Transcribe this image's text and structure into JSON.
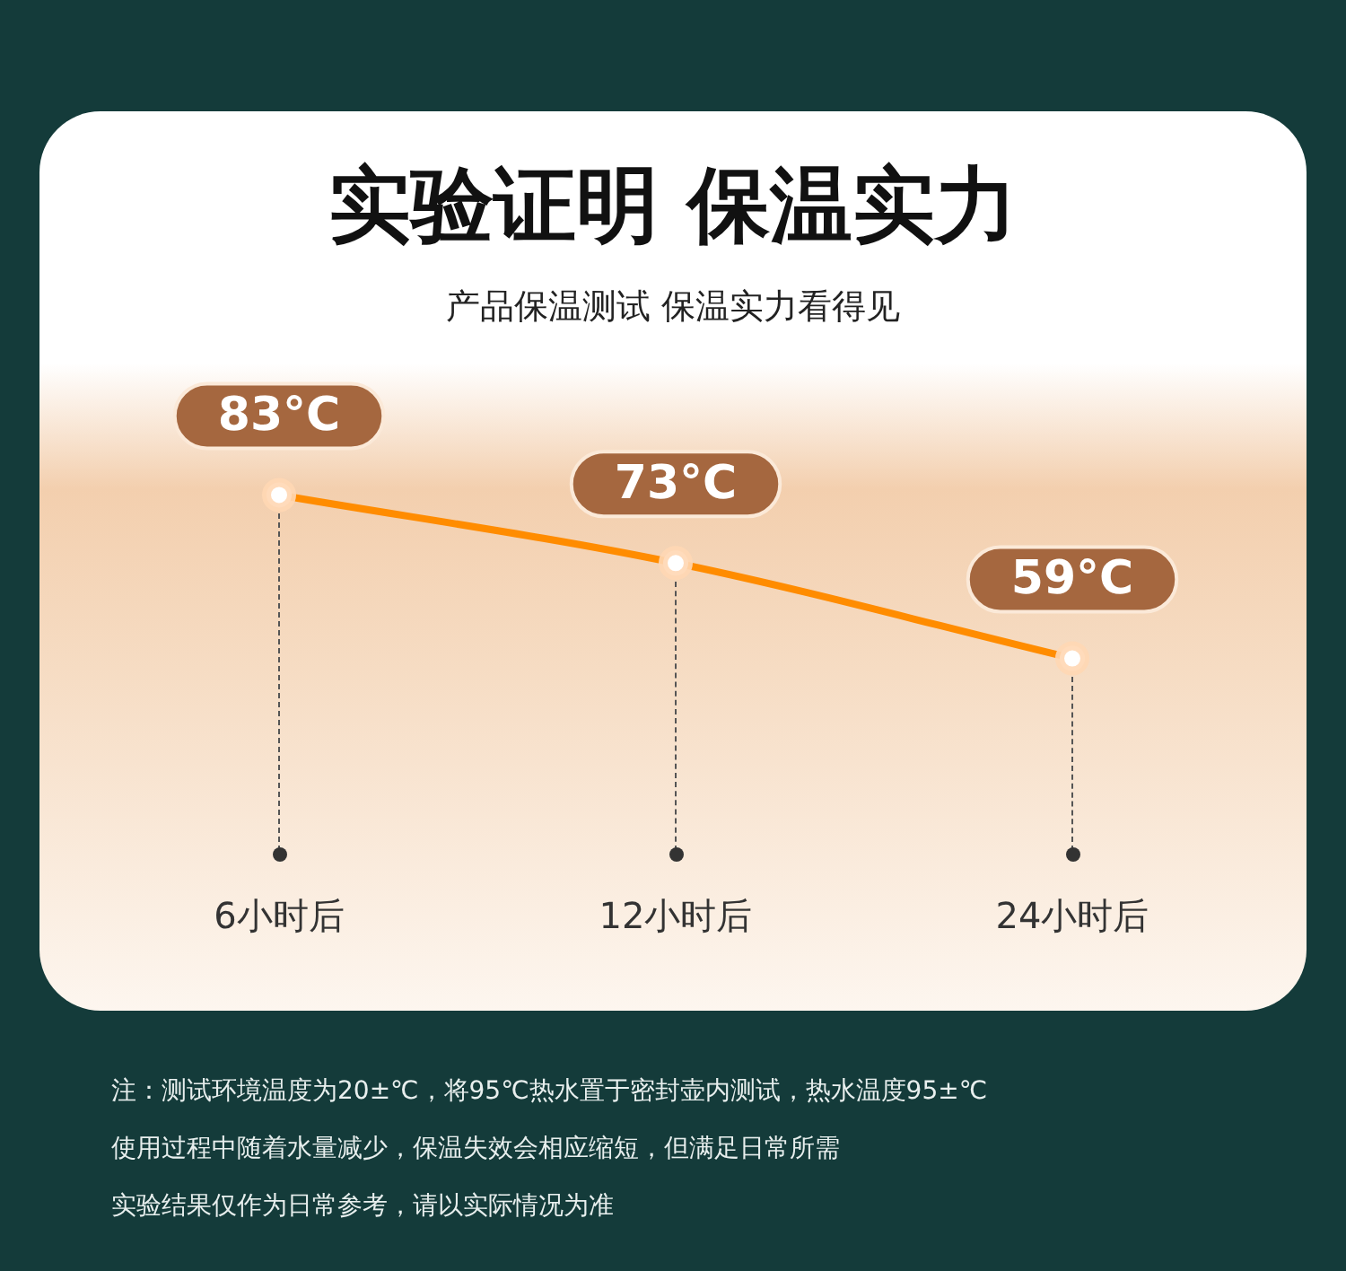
{
  "chart_data": {
    "type": "line",
    "title": "实验证明 保温实力",
    "subtitle": "产品保温测试 保温实力看得见",
    "categories": [
      "6小时后",
      "12小时后",
      "24小时后"
    ],
    "values": [
      83,
      73,
      59
    ],
    "value_labels": [
      "83°C",
      "73°C",
      "59°C"
    ],
    "color": "#ff8c00",
    "marker": "circle",
    "tick_labels": "x",
    "annotations": [
      "注：测试环境温度为20±℃，将95℃热水置于密封壶内测试，热水温度95±℃",
      "使用过程中随着水量减少，保温失效会相应缩短，但满足日常所需",
      "实验结果仅作为日常参考，请以实际情况为准"
    ]
  }
}
